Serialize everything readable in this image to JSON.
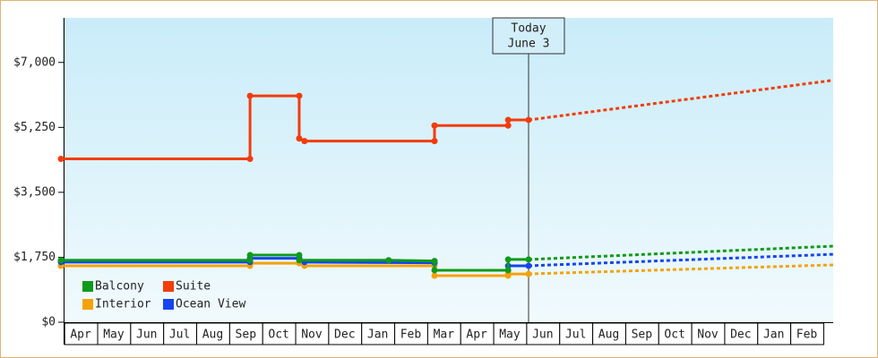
{
  "chart_data": {
    "type": "line",
    "categories": [
      "Apr",
      "May",
      "Jun",
      "Jul",
      "Aug",
      "Sep",
      "Oct",
      "Nov",
      "Dec",
      "Jan",
      "Feb",
      "Mar",
      "Apr",
      "May",
      "Jun",
      "Jul",
      "Aug",
      "Sep",
      "Oct",
      "Nov",
      "Dec",
      "Jan",
      "Feb"
    ],
    "xlim": [
      -0.1,
      23.3
    ],
    "ylim": [
      0,
      8200
    ],
    "yticks": [
      {
        "value": 0,
        "label": "$0"
      },
      {
        "value": 1750,
        "label": "$1,750"
      },
      {
        "value": 3500,
        "label": "$3,500"
      },
      {
        "value": 5250,
        "label": "$5,250"
      },
      {
        "value": 7000,
        "label": "$7,000"
      }
    ],
    "grid": false,
    "legend": "lower left",
    "today": {
      "x": 14.07,
      "label": [
        "Today",
        "June 3"
      ]
    },
    "series": [
      {
        "name": "Interior",
        "color": "#f5a20a",
        "x": [
          -0.1,
          5.63,
          5.63,
          7.12,
          7.28,
          11.22,
          11.22,
          13.45,
          13.45,
          14.07
        ],
        "values": [
          1520,
          1520,
          1590,
          1590,
          1520,
          1520,
          1255,
          1255,
          1300,
          1300
        ],
        "projection_x": [
          14.07,
          23.3
        ],
        "projection_values": [
          1300,
          1545
        ]
      },
      {
        "name": "Ocean View",
        "color": "#1445f0",
        "x": [
          -0.1,
          5.63,
          5.63,
          7.12,
          7.28,
          11.22,
          12.3,
          13.45,
          14.07
        ],
        "values": [
          1620,
          1620,
          1720,
          1720,
          1620,
          1600,
          null,
          1520,
          1520
        ],
        "projection_x": [
          14.07,
          23.3
        ],
        "projection_values": [
          1520,
          1830
        ]
      },
      {
        "name": "Balcony",
        "color": "#0f9a1a",
        "x": [
          -0.1,
          5.63,
          5.63,
          7.12,
          7.12,
          9.83,
          11.22,
          11.22,
          13.45,
          13.45,
          14.07
        ],
        "values": [
          1670,
          1670,
          1810,
          1810,
          1670,
          1670,
          1650,
          1400,
          1400,
          1690,
          1690
        ],
        "projection_x": [
          14.07,
          23.3
        ],
        "projection_values": [
          1690,
          2050
        ]
      },
      {
        "name": "Suite",
        "color": "#f23c0c",
        "x": [
          -0.1,
          5.63,
          5.63,
          7.12,
          7.12,
          7.28,
          11.22,
          11.22,
          13.45,
          13.45,
          14.07
        ],
        "values": [
          4400,
          4400,
          6100,
          6100,
          4950,
          4880,
          4880,
          5300,
          5300,
          5450,
          5450
        ],
        "projection_x": [
          14.07,
          23.3
        ],
        "projection_values": [
          5450,
          6520
        ]
      }
    ]
  }
}
